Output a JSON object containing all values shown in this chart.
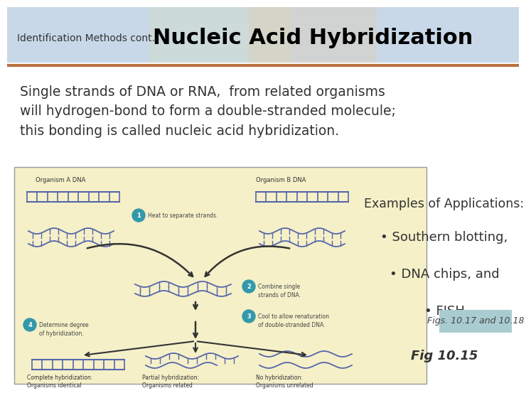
{
  "title_small": "Identification Methods cont.: ",
  "title_large": "Nucleic Acid Hybridization",
  "body_text": "Single strands of DNA or RNA,  from related organisms\nwill hydrogen-bond to form a double-stranded molecule;\nthis bonding is called nucleic acid hybridization.",
  "examples_header": "Examples of Applications:",
  "bullet_points": [
    "• Southern blotting,",
    "• DNA chips, and",
    "• FISH"
  ],
  "fig_caption_box": "Figs. 10.17 and 10.18",
  "fig_caption": "Fig 10.15",
  "header_bg_color": "#c8d8e8",
  "header_overlay1": "#d4e0c0",
  "header_overlay2": "#e8c8a0",
  "separator_color": "#b87040",
  "body_bg_color": "#ffffff",
  "title_small_color": "#333333",
  "title_large_color": "#000000",
  "body_text_color": "#333333",
  "examples_header_color": "#333333",
  "bullet_color": "#333333",
  "fig_caption_color": "#444444",
  "fig_box_bg": "#a8ccd0",
  "diagram_bg_color": "#f5f0c8",
  "diagram_border_color": "#999999",
  "dna_color": "#5566aa",
  "arrow_color": "#333333",
  "step_circle_color": "#3399aa",
  "step_text_color": "#444444",
  "label_color": "#333333"
}
